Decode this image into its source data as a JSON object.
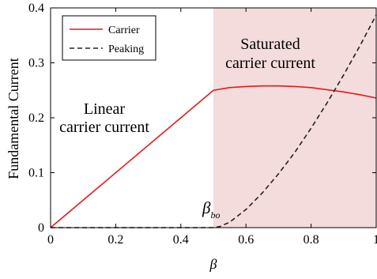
{
  "chart_data": {
    "type": "line",
    "xlabel": "β",
    "ylabel": "Fundamental Current",
    "xlim": [
      0,
      1
    ],
    "ylim": [
      0,
      0.4
    ],
    "xticks": [
      "0",
      "0.2",
      "0.4",
      "0.6",
      "0.8",
      "1"
    ],
    "yticks": [
      "0",
      "0.1",
      "0.2",
      "0.3",
      "0.4"
    ],
    "grid": false,
    "legend": "top-left",
    "shaded_region": {
      "x": [
        0.5,
        1.0
      ],
      "color": "#f4dcdc"
    },
    "annotations": {
      "linear": [
        "Linear",
        "carrier current"
      ],
      "saturated": [
        "Saturated",
        "carrier current"
      ],
      "bo_main": "β",
      "bo_sub": "bo"
    },
    "series": [
      {
        "name": "Carrier",
        "color": "#e41a1c",
        "dash": "solid",
        "x": [
          0,
          0.5,
          0.55,
          0.6,
          0.65,
          0.7,
          0.75,
          0.8,
          0.85,
          0.9,
          0.95,
          1.0
        ],
        "y": [
          0,
          0.25,
          0.255,
          0.257,
          0.258,
          0.258,
          0.257,
          0.255,
          0.251,
          0.247,
          0.242,
          0.236
        ]
      },
      {
        "name": "Peaking",
        "color": "#222222",
        "dash": "dashed",
        "x": [
          0,
          0.5,
          0.52,
          0.55,
          0.6,
          0.65,
          0.7,
          0.75,
          0.8,
          0.85,
          0.9,
          0.95,
          1.0
        ],
        "y": [
          0,
          0,
          0.002,
          0.01,
          0.033,
          0.063,
          0.098,
          0.137,
          0.181,
          0.228,
          0.278,
          0.331,
          0.387
        ]
      }
    ]
  }
}
